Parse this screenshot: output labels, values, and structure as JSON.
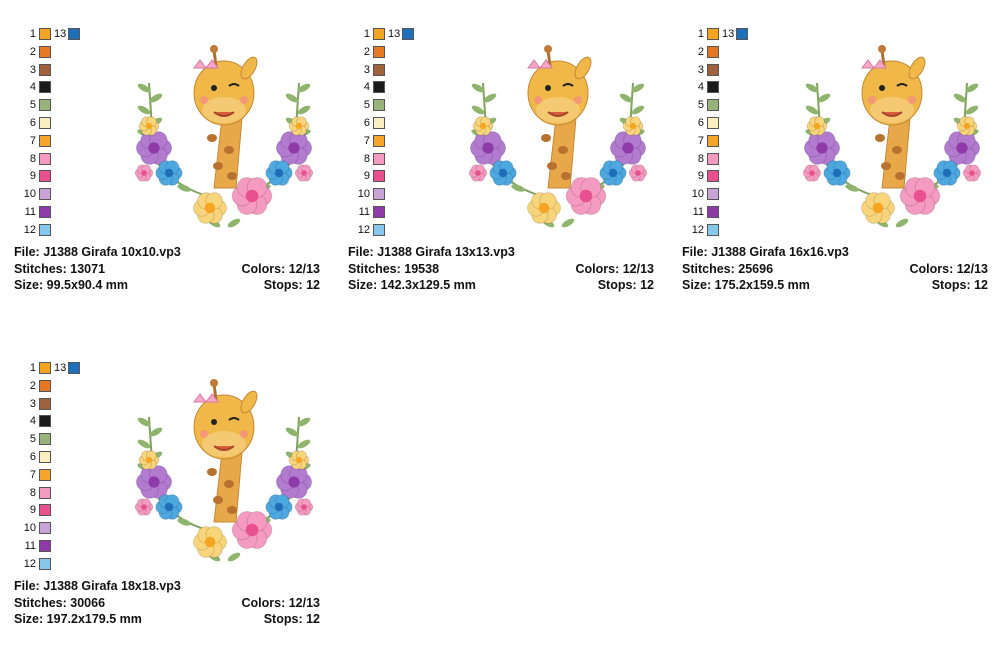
{
  "palette": [
    {
      "n": "1",
      "color": "#f5a521"
    },
    {
      "n": "2",
      "color": "#e67824"
    },
    {
      "n": "3",
      "color": "#a0623c"
    },
    {
      "n": "4",
      "color": "#1a1a1a"
    },
    {
      "n": "5",
      "color": "#98b37a"
    },
    {
      "n": "6",
      "color": "#fbeec0"
    },
    {
      "n": "7",
      "color": "#f4a52a"
    },
    {
      "n": "8",
      "color": "#f59ac0"
    },
    {
      "n": "9",
      "color": "#e8508f"
    },
    {
      "n": "10",
      "color": "#c9a4d8"
    },
    {
      "n": "11",
      "color": "#8e3aa8"
    },
    {
      "n": "12",
      "color": "#86c7ec"
    }
  ],
  "palette_extra": {
    "n": "13",
    "color": "#1e6fb8"
  },
  "labels": {
    "file": "File:",
    "stitches": "Stitches:",
    "size": "Size:",
    "colors": "Colors:",
    "stops": "Stops:"
  },
  "designs": [
    {
      "file": "J1388 Girafa 10x10.vp3",
      "stitches": "13071",
      "size": "99.5x90.4 mm",
      "colors": "12/13",
      "stops": "12"
    },
    {
      "file": "J1388 Girafa 13x13.vp3",
      "stitches": "19538",
      "size": "142.3x129.5 mm",
      "colors": "12/13",
      "stops": "12"
    },
    {
      "file": "J1388 Girafa 16x16.vp3",
      "stitches": "25696",
      "size": "175.2x159.5 mm",
      "colors": "12/13",
      "stops": "12"
    },
    {
      "file": "J1388 Girafa 18x18.vp3",
      "stitches": "30066",
      "size": "197.2x179.5 mm",
      "colors": "12/13",
      "stops": "12"
    }
  ]
}
